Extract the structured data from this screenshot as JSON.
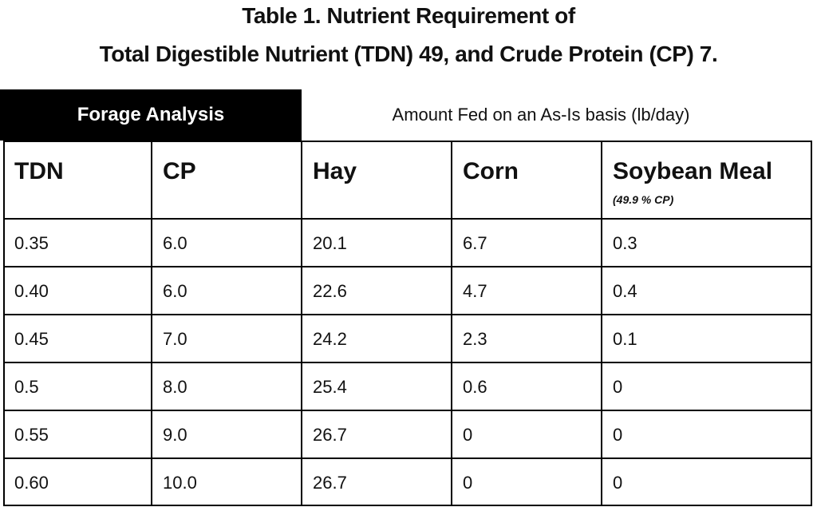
{
  "title": [
    "Table 1. Nutrient Requirement of",
    "Total Digestible Nutrient (TDN) 49, and Crude Protein (CP) 7."
  ],
  "group_headers": [
    "Forage Analysis",
    "Amount Fed on an As-Is basis (lb/day)"
  ],
  "table": {
    "columns": [
      "TDN",
      "CP",
      "Hay",
      "Corn",
      "Soybean Meal"
    ],
    "soybean_note": "(49.9 % CP)",
    "rows": [
      [
        "0.35",
        "6.0",
        "20.1",
        "6.7",
        "0.3"
      ],
      [
        "0.40",
        "6.0",
        "22.6",
        "4.7",
        "0.4"
      ],
      [
        "0.45",
        "7.0",
        "24.2",
        "2.3",
        "0.1"
      ],
      [
        "0.5",
        "8.0",
        "25.4",
        "0.6",
        "0"
      ],
      [
        "0.55",
        "9.0",
        "26.7",
        "0",
        "0"
      ],
      [
        "0.60",
        "10.0",
        "26.7",
        "0",
        "0"
      ]
    ]
  }
}
